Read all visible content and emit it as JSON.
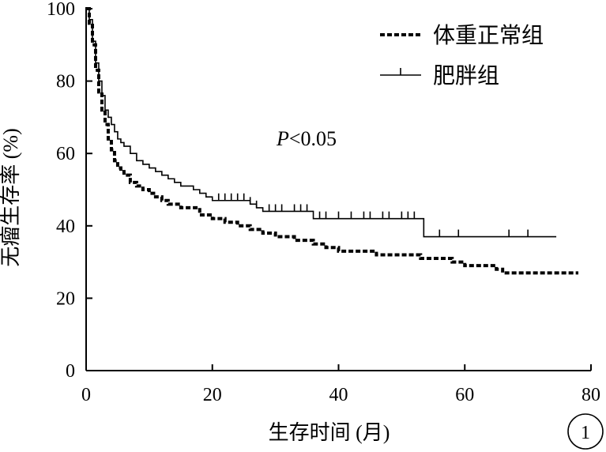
{
  "chart_data": {
    "type": "line",
    "title": "",
    "xlabel": "生存时间 (月)",
    "ylabel": "无瘤生存率 (%)",
    "xlim": [
      0,
      80
    ],
    "ylim": [
      0,
      100
    ],
    "xticks": [
      0,
      20,
      40,
      60,
      80
    ],
    "yticks": [
      0,
      20,
      40,
      60,
      80,
      100
    ],
    "grid": false,
    "legend_position": "top-right",
    "annotation": {
      "italic": "P",
      "rest": "<0.05"
    },
    "panel_label": "1",
    "series": [
      {
        "name": "体重正常组",
        "style": "dashed",
        "color": "#000000",
        "x": [
          0,
          0.5,
          1,
          1.5,
          2,
          2.5,
          3,
          3.5,
          4,
          4.5,
          5,
          5.5,
          6,
          7,
          8,
          9,
          10,
          11,
          12,
          13,
          14,
          15,
          16,
          18,
          20,
          22,
          24,
          26,
          28,
          30,
          33,
          36,
          38,
          40,
          43,
          46,
          48,
          50,
          53,
          56,
          58,
          60,
          62,
          64,
          65,
          66,
          70,
          74,
          78
        ],
        "values": [
          100,
          96,
          90,
          83,
          77,
          72,
          68,
          64,
          61,
          58,
          56,
          55,
          54,
          52,
          51,
          50,
          49,
          48,
          47,
          46,
          46,
          45,
          45,
          43,
          42,
          41,
          40,
          39,
          38,
          37,
          36,
          35,
          34,
          33,
          33,
          32,
          32,
          32,
          31,
          31,
          30,
          29,
          29,
          29,
          28,
          27,
          27,
          27,
          27
        ]
      },
      {
        "name": "肥胖组",
        "style": "solid-censored",
        "color": "#000000",
        "x": [
          0,
          0.5,
          1,
          1.5,
          2,
          2.5,
          3,
          3.5,
          4,
          4.5,
          5,
          5.5,
          6,
          7,
          8,
          9,
          10,
          11,
          12,
          13,
          14,
          15,
          16,
          17,
          18,
          19,
          20,
          26,
          27,
          28,
          36,
          53.5,
          74.5
        ],
        "values": [
          100,
          97,
          91,
          85,
          80,
          76,
          72,
          70,
          68,
          66,
          64,
          63,
          62,
          60,
          58,
          57,
          56,
          55,
          54,
          53,
          52,
          51,
          51,
          50,
          49,
          48,
          47,
          46,
          45,
          44,
          42,
          37,
          37
        ],
        "censored_x": [
          21,
          22,
          23,
          24,
          25,
          26,
          27,
          29,
          30,
          31,
          33,
          34,
          35,
          37,
          38,
          40,
          42,
          44,
          45,
          47,
          48,
          50,
          51,
          52,
          56,
          59,
          67,
          70
        ]
      }
    ]
  }
}
